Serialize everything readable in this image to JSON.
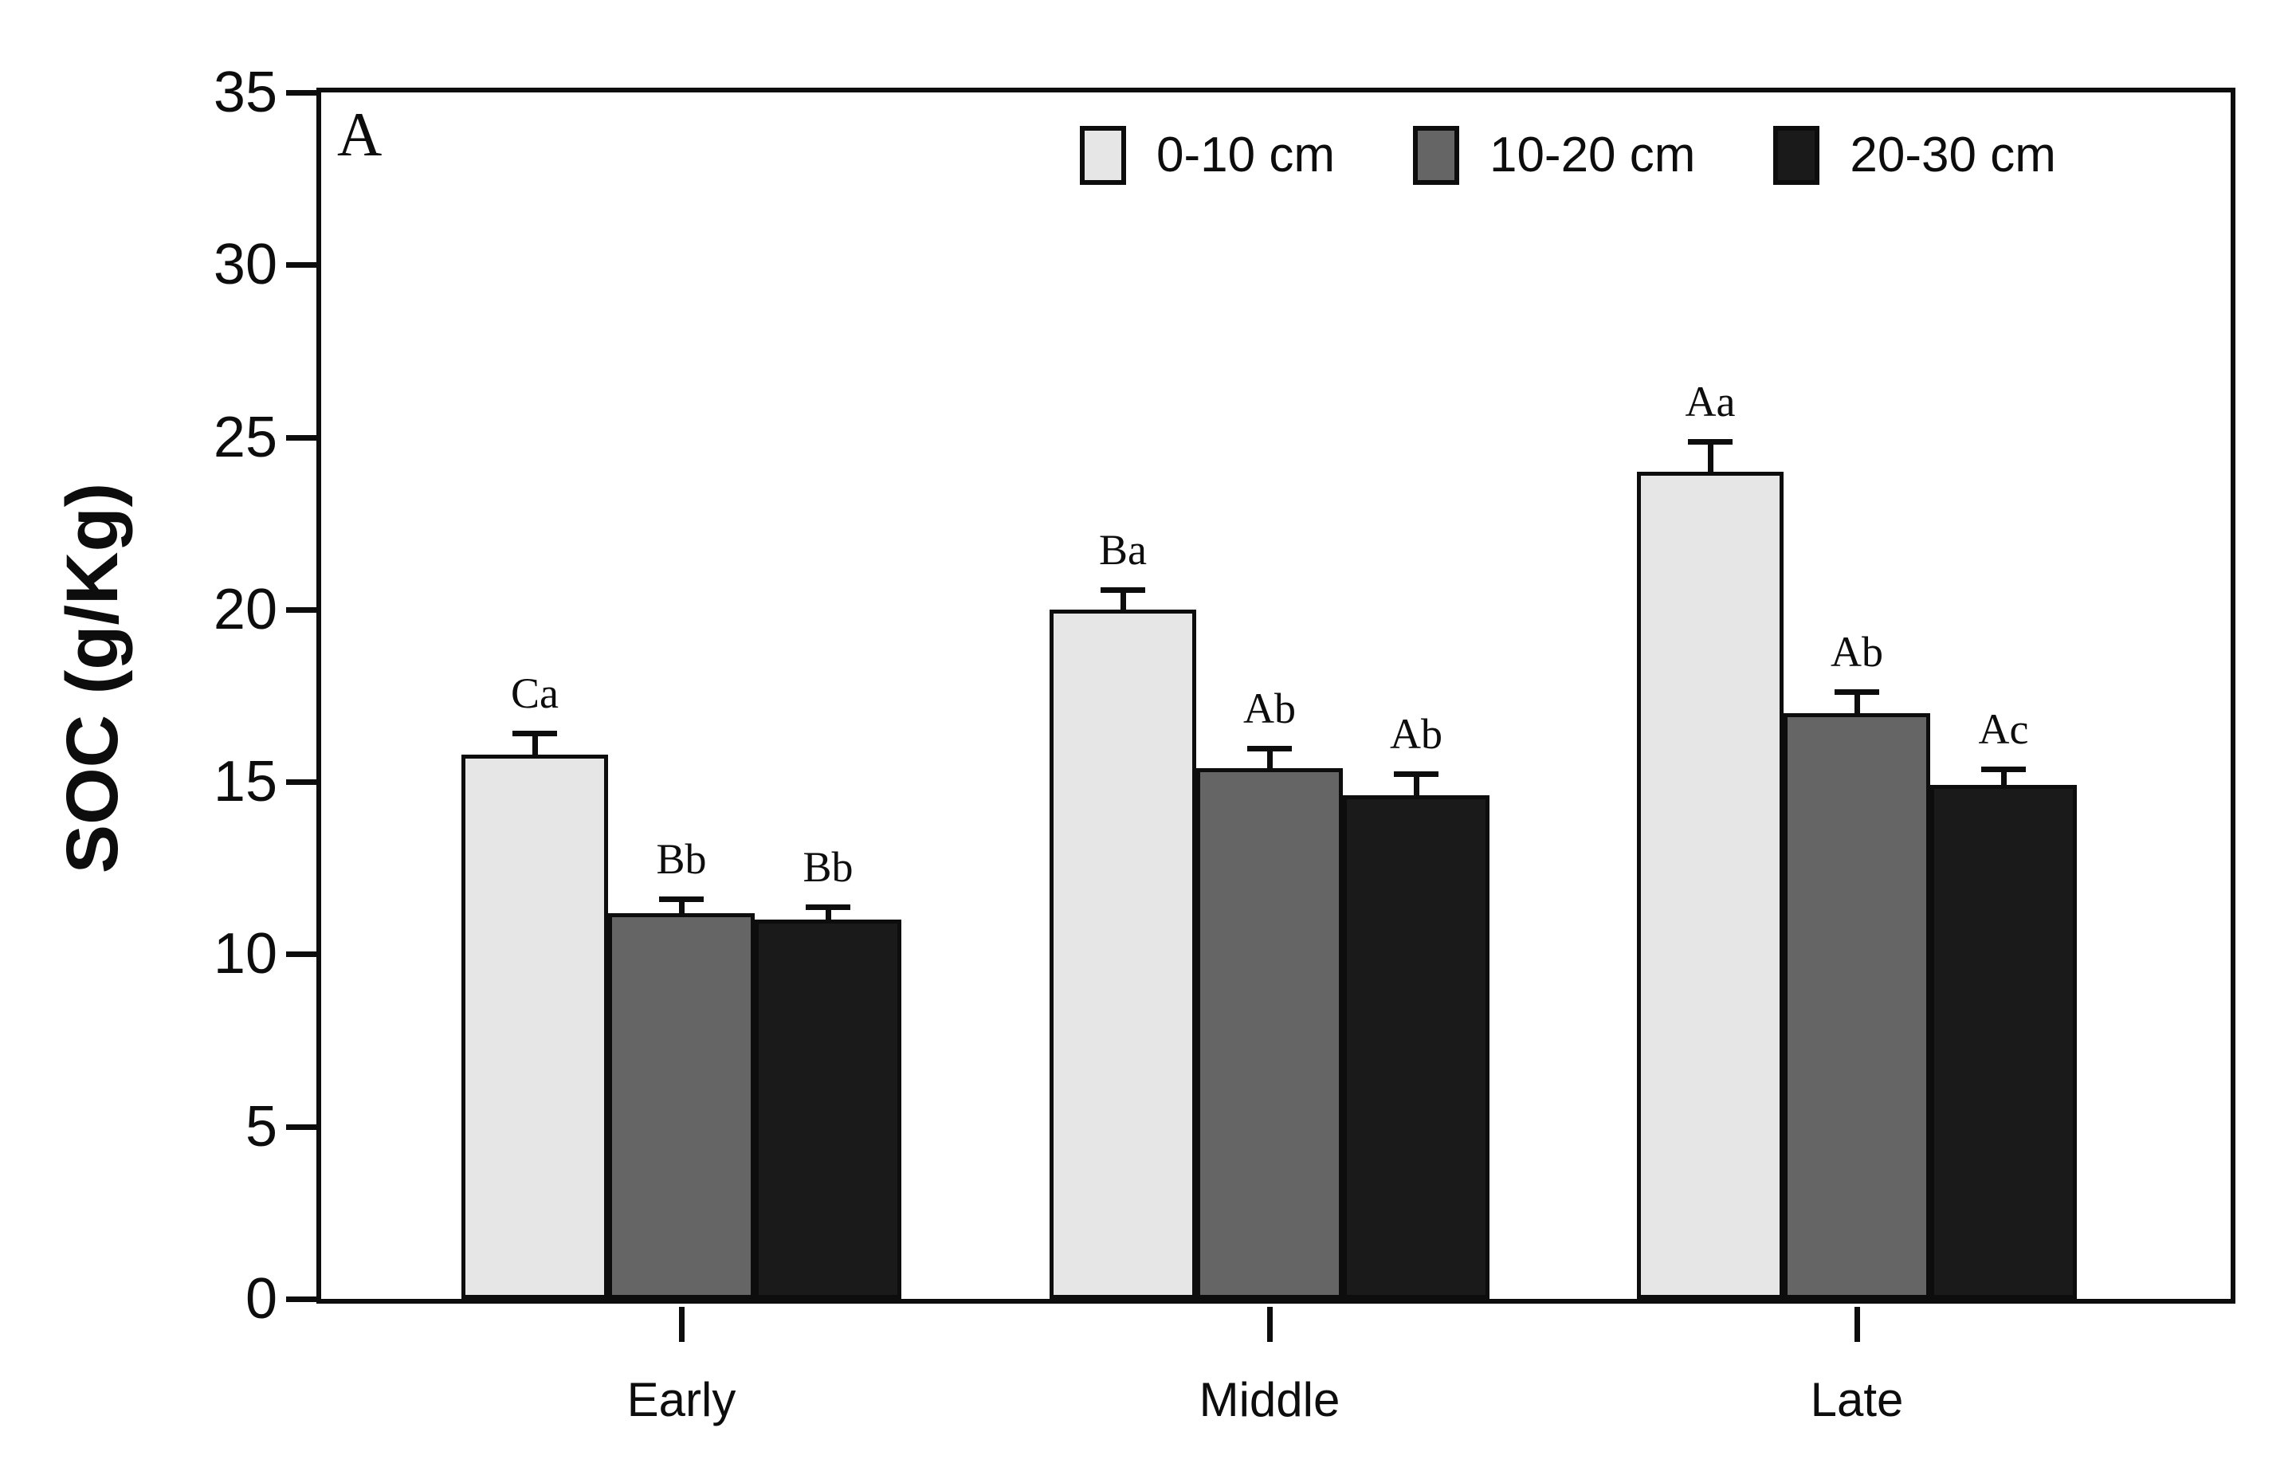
{
  "panel_label": "A",
  "axis": {
    "y_title": "SOC (g/Kg)"
  },
  "legend": {
    "items": [
      {
        "label": "0-10 cm",
        "color": "#e6e6e6"
      },
      {
        "label": "10-20 cm",
        "color": "#656565"
      },
      {
        "label": "20-30 cm",
        "color": "#1a1a1a"
      }
    ]
  },
  "colors": {
    "axis": "#0d0d0d",
    "series_0_10": "#e6e6e6",
    "series_10_20": "#656565",
    "series_20_30": "#1a1a1a"
  },
  "chart_data": {
    "type": "bar",
    "title": "",
    "xlabel": "",
    "ylabel": "SOC (g/Kg)",
    "categories": [
      "Early",
      "Middle",
      "Late"
    ],
    "series": [
      {
        "name": "0-10 cm",
        "color": "#e6e6e6",
        "values": [
          15.8,
          20.0,
          24.0
        ],
        "errors": [
          0.6,
          0.55,
          0.85
        ],
        "letters": [
          "Ca",
          "Ba",
          "Aa"
        ]
      },
      {
        "name": "10-20 cm",
        "color": "#656565",
        "values": [
          11.2,
          15.4,
          17.0
        ],
        "errors": [
          0.4,
          0.55,
          0.6
        ],
        "letters": [
          "Bb",
          "Ab",
          "Ab"
        ]
      },
      {
        "name": "20-30 cm",
        "color": "#1a1a1a",
        "values": [
          11.0,
          14.6,
          14.9
        ],
        "errors": [
          0.35,
          0.6,
          0.45
        ],
        "letters": [
          "Bb",
          "Ab",
          "Ac"
        ]
      }
    ],
    "ylim": [
      0,
      35
    ],
    "yticks": [
      "0",
      "5",
      "10",
      "15",
      "20",
      "25",
      "30",
      "35"
    ],
    "grid": false,
    "error_bars": "upper-only",
    "legend_position": "inside-top-right"
  }
}
